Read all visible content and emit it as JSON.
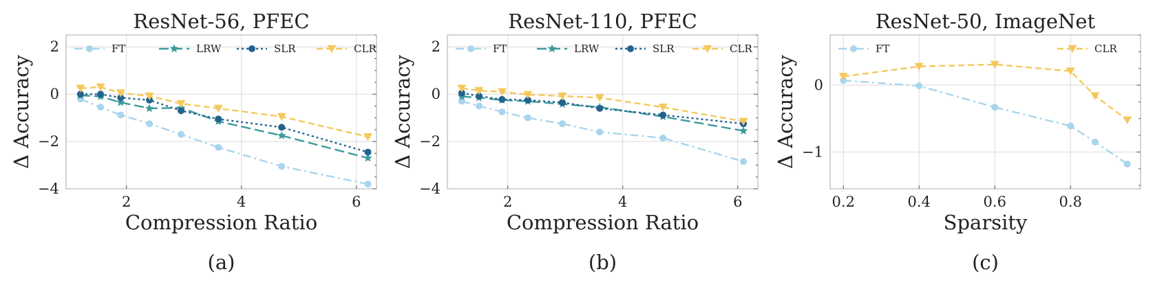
{
  "chart_data": [
    {
      "type": "line",
      "title": "ResNet-56, PFEC",
      "xlabel": "Compression Ratio",
      "ylabel": "Δ Accuracy",
      "caption": "(a)",
      "xlim": [
        0.95,
        6.35
      ],
      "ylim": [
        -4.0,
        2.5
      ],
      "xticks": [
        2,
        4,
        6
      ],
      "yticks": [
        -4,
        -2,
        0,
        2
      ],
      "xtick_labels": [
        "2",
        "4",
        "6"
      ],
      "ytick_labels": [
        "−4",
        "−2",
        "0",
        "2"
      ],
      "series": [
        {
          "name": "FT",
          "x": [
            1.2,
            1.55,
            1.9,
            2.4,
            2.95,
            3.6,
            4.7,
            6.2
          ],
          "y": [
            -0.2,
            -0.55,
            -0.88,
            -1.25,
            -1.7,
            -2.25,
            -3.05,
            -3.8
          ]
        },
        {
          "name": "LRW",
          "x": [
            1.2,
            1.55,
            1.9,
            2.4,
            2.95,
            3.6,
            4.7,
            6.2
          ],
          "y": [
            -0.05,
            -0.1,
            -0.35,
            -0.6,
            -0.58,
            -1.15,
            -1.75,
            -2.7
          ]
        },
        {
          "name": "SLR",
          "x": [
            1.2,
            1.55,
            1.9,
            2.4,
            2.95,
            3.6,
            4.7,
            6.2
          ],
          "y": [
            0.0,
            0.0,
            -0.15,
            -0.25,
            -0.7,
            -1.05,
            -1.4,
            -2.45
          ]
        },
        {
          "name": "CLR",
          "x": [
            1.2,
            1.55,
            1.9,
            2.4,
            2.95,
            3.6,
            4.7,
            6.2
          ],
          "y": [
            0.25,
            0.3,
            0.05,
            -0.08,
            -0.4,
            -0.6,
            -0.95,
            -1.8
          ]
        }
      ]
    },
    {
      "type": "line",
      "title": "ResNet-110, PFEC",
      "xlabel": "Compression Ratio",
      "ylabel": "Δ Accuracy",
      "caption": "(b)",
      "xlim": [
        0.95,
        6.35
      ],
      "ylim": [
        -4.0,
        2.5
      ],
      "xticks": [
        2,
        4,
        6
      ],
      "yticks": [
        -4,
        -2,
        0,
        2
      ],
      "xtick_labels": [
        "2",
        "4",
        "6"
      ],
      "ytick_labels": [
        "−4",
        "−2",
        "0",
        "2"
      ],
      "series": [
        {
          "name": "FT",
          "x": [
            1.2,
            1.5,
            1.9,
            2.35,
            2.95,
            3.6,
            4.7,
            6.1
          ],
          "y": [
            -0.3,
            -0.5,
            -0.75,
            -1.0,
            -1.25,
            -1.6,
            -1.85,
            -2.85
          ]
        },
        {
          "name": "LRW",
          "x": [
            1.2,
            1.5,
            1.9,
            2.35,
            2.95,
            3.6,
            4.7,
            6.1
          ],
          "y": [
            -0.1,
            -0.15,
            -0.25,
            -0.3,
            -0.42,
            -0.55,
            -0.95,
            -1.55
          ]
        },
        {
          "name": "SLR",
          "x": [
            1.2,
            1.5,
            1.9,
            2.35,
            2.95,
            3.6,
            4.7,
            6.1
          ],
          "y": [
            0.05,
            -0.08,
            -0.22,
            -0.25,
            -0.35,
            -0.6,
            -0.88,
            -1.25
          ]
        },
        {
          "name": "CLR",
          "x": [
            1.2,
            1.5,
            1.9,
            2.35,
            2.95,
            3.6,
            4.7,
            6.1
          ],
          "y": [
            0.25,
            0.15,
            0.1,
            -0.02,
            -0.08,
            -0.15,
            -0.55,
            -1.15
          ]
        }
      ]
    },
    {
      "type": "line",
      "title": "ResNet-50, ImageNet",
      "xlabel": "Sparsity",
      "ylabel": "Δ Accuracy",
      "caption": "(c)",
      "xlim": [
        0.165,
        0.985
      ],
      "ylim": [
        -1.55,
        0.75
      ],
      "xticks": [
        0.2,
        0.4,
        0.6,
        0.8
      ],
      "yticks": [
        -1,
        0
      ],
      "xtick_labels": [
        "0.2",
        "0.4",
        "0.6",
        "0.8"
      ],
      "ytick_labels": [
        "−1",
        "0"
      ],
      "series": [
        {
          "name": "FT",
          "x": [
            0.2,
            0.4,
            0.6,
            0.8,
            0.865,
            0.95
          ],
          "y": [
            0.07,
            -0.01,
            -0.33,
            -0.61,
            -0.85,
            -1.18
          ]
        },
        {
          "name": "CLR",
          "x": [
            0.2,
            0.4,
            0.6,
            0.8,
            0.865,
            0.95
          ],
          "y": [
            0.13,
            0.28,
            0.31,
            0.21,
            -0.16,
            -0.52
          ]
        }
      ]
    }
  ],
  "series_styles": {
    "FT": {
      "color": "#a8d5ec",
      "dash": "12 5 3 5",
      "marker": "circle"
    },
    "LRW": {
      "color": "#3a9a9c",
      "dash": "14 6",
      "marker": "star"
    },
    "SLR": {
      "color": "#23628f",
      "dash": "3 4",
      "marker": "circle"
    },
    "CLR": {
      "color": "#f5c85c",
      "dash": "9 5",
      "marker": "triangle-down"
    }
  },
  "colors": {
    "grid": "#d9d9d9",
    "axis": "#aaaaaa",
    "text": "#222222"
  }
}
